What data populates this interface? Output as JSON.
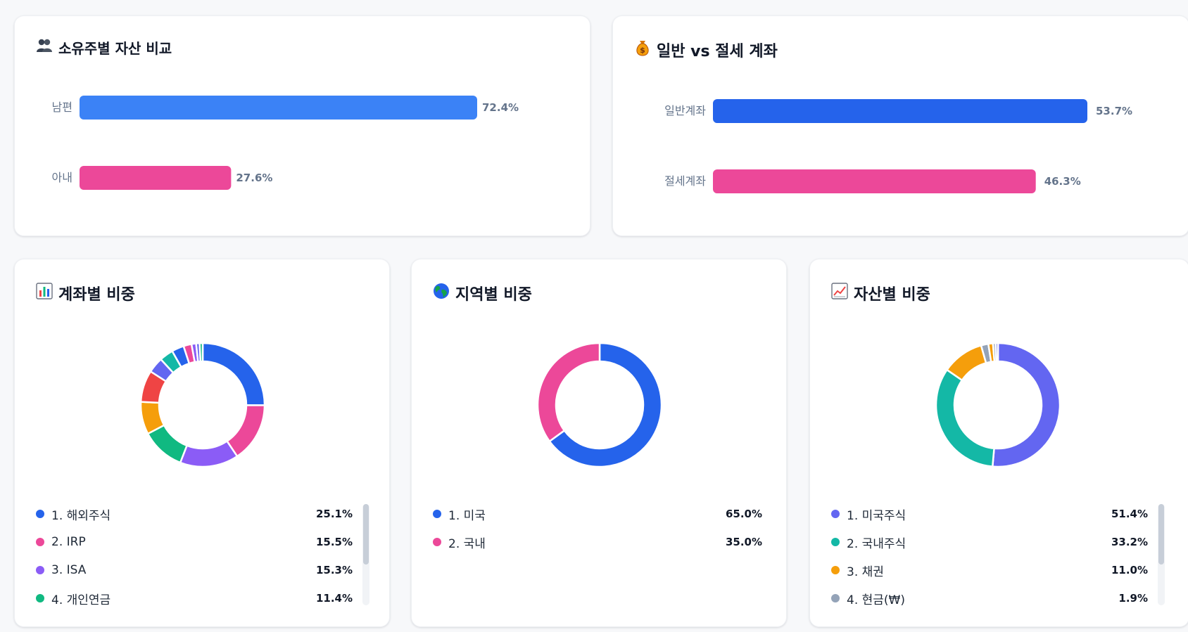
{
  "colors": {
    "blue": "#3b82f6",
    "blue_dark": "#2563eb",
    "pink": "#ec4899",
    "purple": "#8b5cf6",
    "green": "#10b981",
    "amber": "#f59e0b",
    "red": "#ef4444",
    "indigo": "#6366f1",
    "teal": "#14b8a6",
    "gray": "#94a3b8",
    "track": "#f1f3f6"
  },
  "owner_card": {
    "icon": "people-icon",
    "title": "소유주별 자산 비교",
    "chart_data": {
      "type": "bar",
      "orientation": "horizontal",
      "title": "소유주별 자산 비교",
      "categories": [
        "남편",
        "아내"
      ],
      "values": [
        72.4,
        27.6
      ],
      "value_labels": [
        "72.4%",
        "27.6%"
      ],
      "colors": [
        "#3b82f6",
        "#ec4899"
      ],
      "xlim": [
        0,
        72.4
      ]
    }
  },
  "tax_card": {
    "icon": "money-bag-icon",
    "title": "일반 vs 절세 계좌",
    "chart_data": {
      "type": "bar",
      "orientation": "horizontal",
      "title": "일반 vs 절세 계좌",
      "categories": [
        "일반계좌",
        "절세계좌"
      ],
      "values": [
        53.7,
        46.3
      ],
      "value_labels": [
        "53.7%",
        "46.3%"
      ],
      "colors": [
        "#2563eb",
        "#ec4899"
      ],
      "xlim": [
        0,
        53.7
      ]
    }
  },
  "account_card": {
    "icon": "bar-chart-icon",
    "title": "계좌별 비중",
    "legend": [
      {
        "label": "1. 해외주식",
        "pct": "25.1%",
        "color": "#2563eb"
      },
      {
        "label": "2. IRP",
        "pct": "15.5%",
        "color": "#ec4899"
      },
      {
        "label": "3. ISA",
        "pct": "15.3%",
        "color": "#8b5cf6"
      },
      {
        "label": "4. 개인연금",
        "pct": "11.4%",
        "color": "#10b981"
      }
    ],
    "scroll": {
      "visible_fraction": 0.6
    },
    "chart_data": {
      "type": "pie",
      "donut": true,
      "title": "계좌별 비중",
      "values": [
        25.1,
        15.5,
        15.3,
        11.4,
        8.5,
        8.3,
        4.1,
        3.6,
        3.2,
        2.1,
        1.2,
        0.9,
        0.8
      ],
      "colors": [
        "#2563eb",
        "#ec4899",
        "#8b5cf6",
        "#10b981",
        "#f59e0b",
        "#ef4444",
        "#6366f1",
        "#14b8a6",
        "#2563eb",
        "#ec4899",
        "#8b5cf6",
        "#6366f1",
        "#10b981"
      ]
    }
  },
  "region_card": {
    "icon": "globe-icon",
    "title": "지역별 비중",
    "legend": [
      {
        "label": "1. 미국",
        "pct": "65.0%",
        "color": "#2563eb"
      },
      {
        "label": "2. 국내",
        "pct": "35.0%",
        "color": "#ec4899"
      }
    ],
    "chart_data": {
      "type": "pie",
      "donut": true,
      "title": "지역별 비중",
      "values": [
        65.0,
        35.0
      ],
      "colors": [
        "#2563eb",
        "#ec4899"
      ]
    }
  },
  "asset_card": {
    "icon": "trend-chart-icon",
    "title": "자산별 비중",
    "legend": [
      {
        "label": "1. 미국주식",
        "pct": "51.4%",
        "color": "#6366f1"
      },
      {
        "label": "2. 국내주식",
        "pct": "33.2%",
        "color": "#14b8a6"
      },
      {
        "label": "3. 채권",
        "pct": "11.0%",
        "color": "#f59e0b"
      },
      {
        "label": "4. 현금(₩)",
        "pct": "1.9%",
        "color": "#94a3b8"
      }
    ],
    "scroll": {
      "visible_fraction": 0.6
    },
    "chart_data": {
      "type": "pie",
      "donut": true,
      "title": "자산별 비중",
      "values": [
        51.4,
        33.2,
        11.0,
        1.9,
        1.2,
        0.7,
        0.6
      ],
      "colors": [
        "#6366f1",
        "#14b8a6",
        "#f59e0b",
        "#94a3b8",
        "#f59e0b",
        "#94a3b8",
        "#6366f1"
      ]
    }
  }
}
